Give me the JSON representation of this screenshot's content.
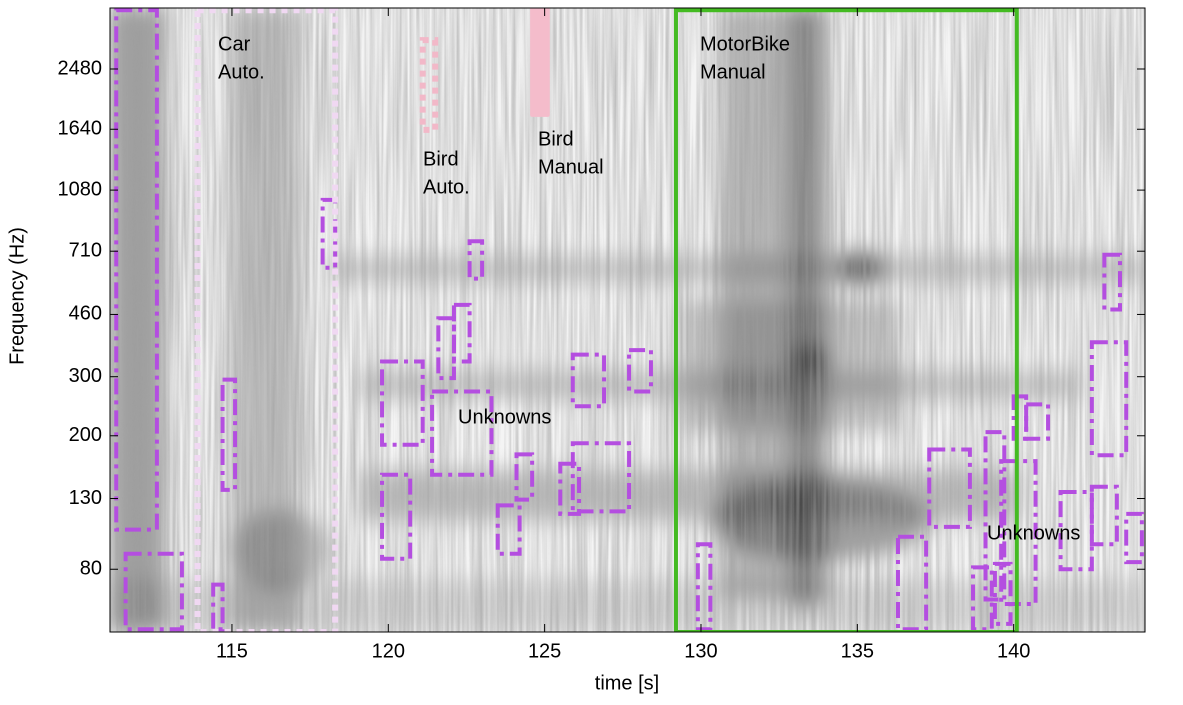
{
  "chart_data": {
    "type": "spectrogram",
    "xlabel": "time [s]",
    "ylabel": "Frequency (Hz)",
    "xlim": [
      111.1,
      144.2
    ],
    "ylim": [
      52,
      3770
    ],
    "yscale": "log",
    "xticks": [
      115,
      120,
      125,
      130,
      135,
      140
    ],
    "yticks": [
      80,
      130,
      200,
      300,
      460,
      710,
      1080,
      1640,
      2480
    ],
    "regions": [
      {
        "time": [
          111.3,
          112.6
        ],
        "frequency": [
          105,
          3713
        ],
        "style": "dashdot",
        "color": "#b44ee0"
      },
      {
        "time": [
          111.6,
          113.4
        ],
        "frequency": [
          53,
          89
        ],
        "style": "dashdot",
        "color": "#b44ee0"
      },
      {
        "time": [
          114.7,
          115.1
        ],
        "frequency": [
          138,
          294
        ],
        "style": "dashdot",
        "color": "#b44ee0"
      },
      {
        "time": [
          114.4,
          114.7
        ],
        "frequency": [
          53,
          72
        ],
        "style": "dashdot",
        "color": "#b44ee0"
      },
      {
        "time": [
          117.9,
          118.3
        ],
        "frequency": [
          634,
          1010
        ],
        "style": "dashdot",
        "color": "#b44ee0"
      },
      {
        "time": [
          119.8,
          121.1
        ],
        "frequency": [
          188,
          333
        ],
        "style": "dashdot",
        "color": "#b44ee0"
      },
      {
        "time": [
          119.8,
          120.7
        ],
        "frequency": [
          86,
          153
        ],
        "style": "dashdot",
        "color": "#b44ee0"
      },
      {
        "time": [
          121.4,
          123.3
        ],
        "frequency": [
          153,
          271
        ],
        "style": "dashdot",
        "color": "#b44ee0"
      },
      {
        "time": [
          121.6,
          122.1
        ],
        "frequency": [
          297,
          448
        ],
        "style": "dashdot",
        "color": "#b44ee0"
      },
      {
        "time": [
          122.1,
          122.6
        ],
        "frequency": [
          333,
          491
        ],
        "style": "dashdot",
        "color": "#b44ee0"
      },
      {
        "time": [
          122.6,
          123.0
        ],
        "frequency": [
          588,
          760
        ],
        "style": "dashdot",
        "color": "#b44ee0"
      },
      {
        "time": [
          124.1,
          124.6
        ],
        "frequency": [
          129,
          176
        ],
        "style": "dashdot",
        "color": "#b44ee0"
      },
      {
        "time": [
          123.5,
          124.2
        ],
        "frequency": [
          89,
          124
        ],
        "style": "dashdot",
        "color": "#b44ee0"
      },
      {
        "time": [
          125.5,
          126.1
        ],
        "frequency": [
          117,
          165
        ],
        "style": "dashdot",
        "color": "#b44ee0"
      },
      {
        "time": [
          125.9,
          127.7
        ],
        "frequency": [
          119,
          190
        ],
        "style": "dashdot",
        "color": "#b44ee0"
      },
      {
        "time": [
          125.9,
          126.9
        ],
        "frequency": [
          245,
          349
        ],
        "style": "dashdot",
        "color": "#b44ee0"
      },
      {
        "time": [
          127.7,
          128.4
        ],
        "frequency": [
          271,
          360
        ],
        "style": "dashdot",
        "color": "#b44ee0"
      },
      {
        "time": [
          129.9,
          130.3
        ],
        "frequency": [
          53,
          95
        ],
        "style": "dashdot",
        "color": "#b44ee0"
      },
      {
        "time": [
          136.3,
          137.2
        ],
        "frequency": [
          53,
          100
        ],
        "style": "dashdot",
        "color": "#b44ee0"
      },
      {
        "time": [
          137.3,
          138.6
        ],
        "frequency": [
          107,
          182
        ],
        "style": "dashdot",
        "color": "#b44ee0"
      },
      {
        "time": [
          138.7,
          139.3
        ],
        "frequency": [
          53,
          81
        ],
        "style": "dashdot",
        "color": "#b44ee0"
      },
      {
        "time": [
          139.1,
          139.7
        ],
        "frequency": [
          65,
          205
        ],
        "style": "dashdot",
        "color": "#b44ee0"
      },
      {
        "time": [
          139.4,
          139.9
        ],
        "frequency": [
          55,
          83
        ],
        "style": "dashdot",
        "color": "#b44ee0"
      },
      {
        "time": [
          139.6,
          140.7
        ],
        "frequency": [
          63,
          168
        ],
        "style": "dashdot",
        "color": "#b44ee0"
      },
      {
        "time": [
          140.0,
          140.4
        ],
        "frequency": [
          196,
          262
        ],
        "style": "dashdot",
        "color": "#b44ee0"
      },
      {
        "time": [
          140.4,
          141.1
        ],
        "frequency": [
          196,
          248
        ],
        "style": "dashdot",
        "color": "#b44ee0"
      },
      {
        "time": [
          141.5,
          142.5
        ],
        "frequency": [
          80,
          136
        ],
        "style": "dashdot",
        "color": "#b44ee0"
      },
      {
        "time": [
          142.5,
          143.3
        ],
        "frequency": [
          95,
          141
        ],
        "style": "dashdot",
        "color": "#b44ee0"
      },
      {
        "time": [
          143.6,
          144.1
        ],
        "frequency": [
          84,
          117
        ],
        "style": "dashdot",
        "color": "#b44ee0"
      },
      {
        "time": [
          142.5,
          143.6
        ],
        "frequency": [
          175,
          380
        ],
        "style": "dashdot",
        "color": "#b44ee0"
      },
      {
        "time": [
          142.9,
          143.4
        ],
        "frequency": [
          476,
          693
        ],
        "style": "dashdot",
        "color": "#b44ee0"
      },
      {
        "time": [
          113.9,
          118.3
        ],
        "frequency": [
          52,
          3713
        ],
        "style": "dotted",
        "color": "#f0d8f2"
      },
      {
        "time": [
          121.1,
          121.5
        ],
        "frequency": [
          1633,
          3024
        ],
        "style": "dotted",
        "color": "#f2b8c8"
      },
      {
        "time": [
          124.6,
          125.1
        ],
        "frequency": [
          1810,
          3770
        ],
        "style": "bar",
        "color": "#f4bccb"
      },
      {
        "time": [
          129.2,
          140.1
        ],
        "frequency": [
          52,
          3713
        ],
        "style": "solid",
        "color": "#44bb22"
      }
    ],
    "labels": [
      {
        "lines": [
          "Car",
          "Auto."
        ]
      },
      {
        "lines": [
          "Bird",
          "Auto."
        ]
      },
      {
        "lines": [
          "Bird",
          "Manual"
        ]
      },
      {
        "lines": [
          "MotorBike",
          "Manual"
        ]
      },
      {
        "lines": [
          "Unknowns"
        ]
      },
      {
        "lines": [
          "Unknowns"
        ]
      }
    ]
  }
}
